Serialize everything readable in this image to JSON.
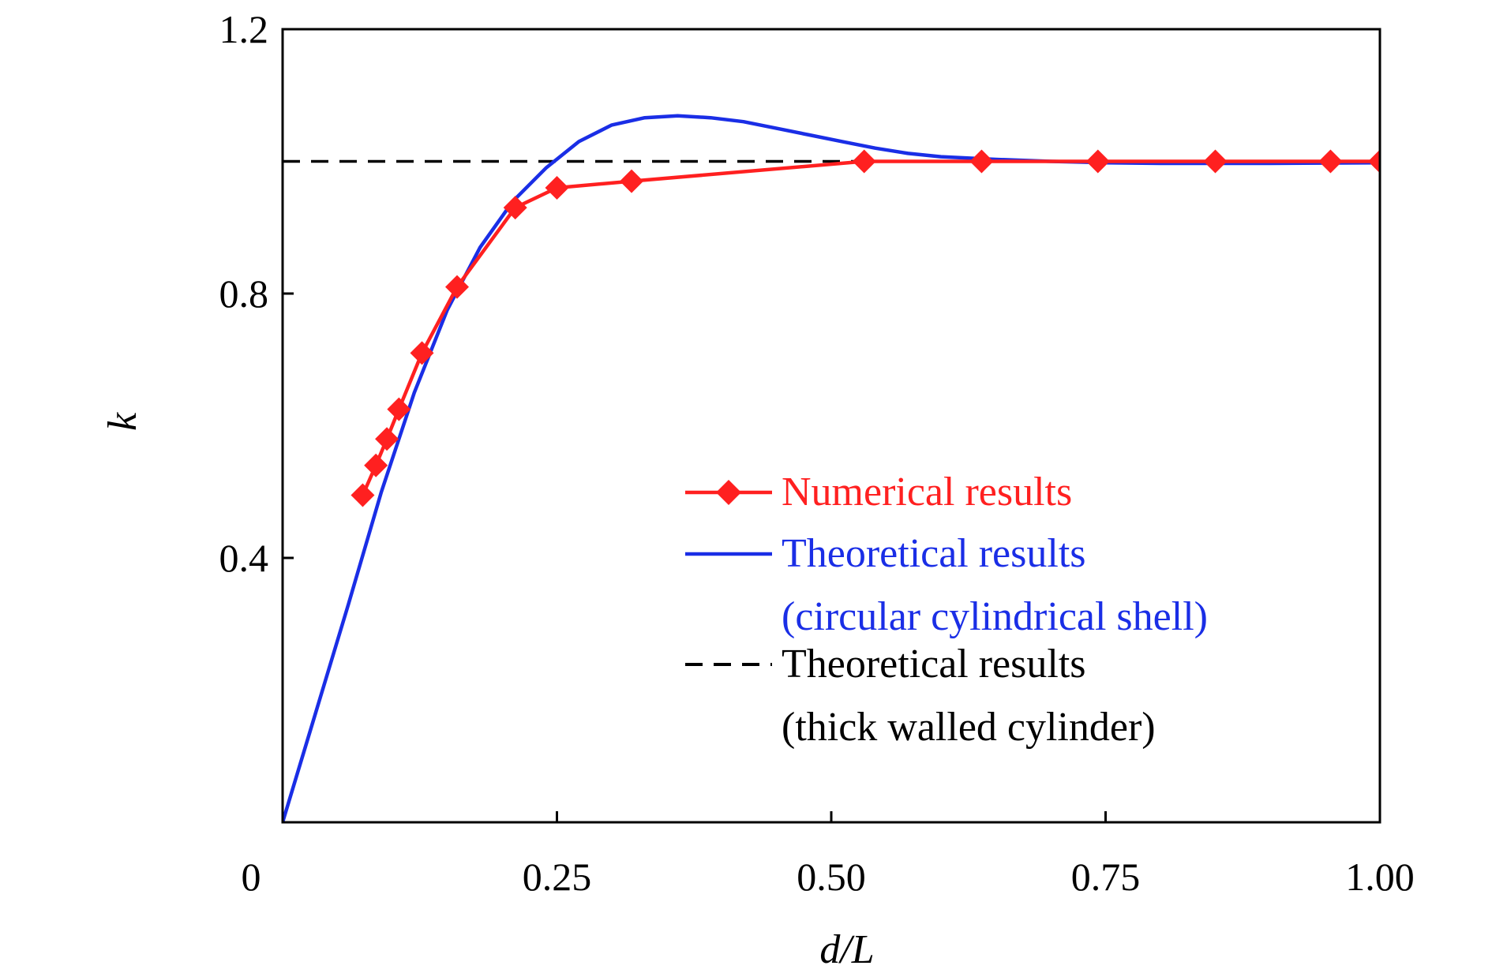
{
  "chart_data": {
    "type": "line",
    "xlabel": "d/L",
    "ylabel": "k",
    "xlim": [
      0,
      1.0
    ],
    "ylim": [
      0,
      1.2
    ],
    "x_ticks": [
      {
        "value": 0,
        "label": "0"
      },
      {
        "value": 0.25,
        "label": "0.25"
      },
      {
        "value": 0.5,
        "label": "0.50"
      },
      {
        "value": 0.75,
        "label": "0.75"
      },
      {
        "value": 1.0,
        "label": "1.00"
      }
    ],
    "y_ticks": [
      {
        "value": 0.4,
        "label": "0.4"
      },
      {
        "value": 0.8,
        "label": "0.8"
      },
      {
        "value": 1.2,
        "label": "1.2"
      }
    ],
    "grid": false,
    "legend_position": "bottom-right",
    "series": [
      {
        "name": "Numerical results",
        "color": "#ff2020",
        "style": "solid",
        "marker": "diamond",
        "x": [
          0.073,
          0.085,
          0.095,
          0.106,
          0.127,
          0.159,
          0.212,
          0.25,
          0.318,
          0.53,
          0.637,
          0.743,
          0.85,
          0.955,
          1.0
        ],
        "y": [
          0.495,
          0.54,
          0.58,
          0.625,
          0.71,
          0.81,
          0.93,
          0.96,
          0.97,
          1.0,
          1.0,
          1.0,
          1.0,
          1.0,
          1.0
        ]
      },
      {
        "name": "Theoretical results (circular cylindrical shell)",
        "label_lines": [
          "Theoretical results",
          "(circular cylindrical shell)"
        ],
        "color": "#1a2ee6",
        "style": "solid",
        "marker": "none",
        "x": [
          0,
          0.03,
          0.06,
          0.09,
          0.12,
          0.15,
          0.18,
          0.21,
          0.24,
          0.27,
          0.3,
          0.33,
          0.36,
          0.39,
          0.42,
          0.45,
          0.48,
          0.51,
          0.54,
          0.57,
          0.6,
          0.65,
          0.7,
          0.75,
          0.8,
          0.9,
          1.0
        ],
        "y": [
          0,
          0.165,
          0.33,
          0.5,
          0.65,
          0.775,
          0.87,
          0.94,
          0.99,
          1.03,
          1.055,
          1.066,
          1.069,
          1.066,
          1.06,
          1.05,
          1.04,
          1.03,
          1.02,
          1.012,
          1.007,
          1.003,
          1.0,
          0.998,
          0.997,
          0.997,
          0.998
        ]
      },
      {
        "name": "Theoretical results (thick walled cylinder)",
        "label_lines": [
          "Theoretical results",
          "(thick walled cylinder)"
        ],
        "color": "#000000",
        "style": "dashed",
        "marker": "none",
        "x": [
          0,
          1.0
        ],
        "y": [
          1.0,
          1.0
        ]
      }
    ]
  }
}
